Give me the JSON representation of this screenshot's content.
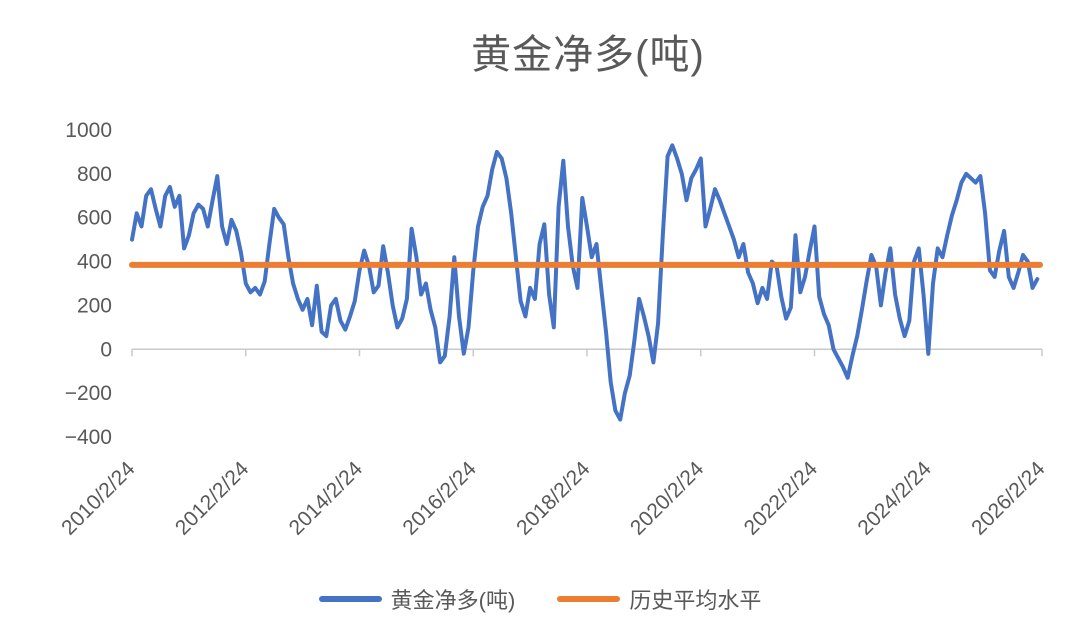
{
  "title": "黄金净多(吨)",
  "colors": {
    "series": "#4472C4",
    "average": "#ED7D31",
    "text": "#595959",
    "axis": "#C9C9C9"
  },
  "legend": [
    {
      "label": "黄金净多(吨)",
      "color_key": "series"
    },
    {
      "label": "历史平均水平",
      "color_key": "average"
    }
  ],
  "chart_data": {
    "type": "line",
    "title": "黄金净多(吨)",
    "unit": "吨",
    "grid": false,
    "legend_position": "bottom",
    "ylim": [
      -400,
      1000
    ],
    "yticks": [
      1000,
      800,
      600,
      400,
      200,
      0,
      -200,
      -400
    ],
    "x_start": "2010/2/24",
    "x_step_months": 1,
    "total_months": 192,
    "xticks": {
      "month_offsets": [
        0,
        24,
        48,
        72,
        96,
        120,
        144,
        168,
        192
      ],
      "labels": [
        "2010/2/24",
        "2012/2/24",
        "2014/2/24",
        "2016/2/24",
        "2018/2/24",
        "2020/2/24",
        "2022/2/24",
        "2024/2/24",
        "2026/2/24"
      ]
    },
    "average_line": {
      "name": "历史平均水平",
      "value": 385
    },
    "series": [
      {
        "name": "黄金净多(吨)",
        "values": [
          500,
          620,
          560,
          700,
          730,
          640,
          560,
          700,
          740,
          650,
          700,
          460,
          520,
          620,
          660,
          640,
          560,
          680,
          790,
          560,
          480,
          590,
          540,
          440,
          300,
          260,
          280,
          250,
          310,
          480,
          640,
          600,
          570,
          420,
          300,
          230,
          180,
          230,
          110,
          290,
          80,
          60,
          200,
          230,
          130,
          90,
          150,
          220,
          360,
          450,
          380,
          260,
          290,
          470,
          350,
          200,
          100,
          140,
          230,
          550,
          420,
          250,
          300,
          180,
          100,
          -60,
          -30,
          150,
          420,
          150,
          -20,
          100,
          360,
          560,
          650,
          700,
          820,
          900,
          870,
          780,
          620,
          420,
          220,
          150,
          280,
          230,
          480,
          570,
          250,
          100,
          650,
          860,
          560,
          380,
          280,
          690,
          560,
          420,
          480,
          280,
          80,
          -150,
          -280,
          -320,
          -200,
          -120,
          40,
          230,
          150,
          60,
          -60,
          120,
          520,
          880,
          930,
          870,
          800,
          680,
          780,
          820,
          870,
          560,
          640,
          730,
          680,
          620,
          560,
          500,
          420,
          480,
          350,
          300,
          210,
          280,
          230,
          400,
          380,
          240,
          140,
          190,
          520,
          260,
          330,
          450,
          560,
          240,
          160,
          110,
          0,
          -40,
          -80,
          -130,
          -30,
          60,
          180,
          310,
          430,
          380,
          200,
          350,
          460,
          250,
          140,
          60,
          130,
          400,
          460,
          250,
          -20,
          300,
          460,
          420,
          520,
          610,
          680,
          760,
          800,
          780,
          760,
          790,
          620,
          360,
          330,
          450,
          540,
          330,
          280,
          350,
          430,
          400,
          280,
          320
        ]
      }
    ]
  }
}
